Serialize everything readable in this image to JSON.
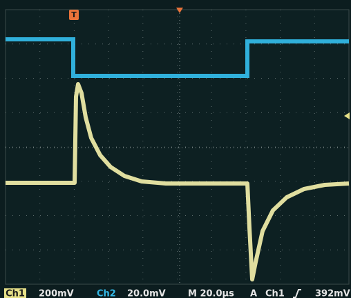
{
  "trigger_marker": "T",
  "status_bar": {
    "ch1_label": "Ch1",
    "ch1_scale": "200mV",
    "ch2_label": "Ch2",
    "ch2_scale": "20.0mV",
    "timebase": "M 20.0µs",
    "trigger_mode": "A",
    "trigger_source": "Ch1",
    "trigger_level": "392mV"
  }
}
